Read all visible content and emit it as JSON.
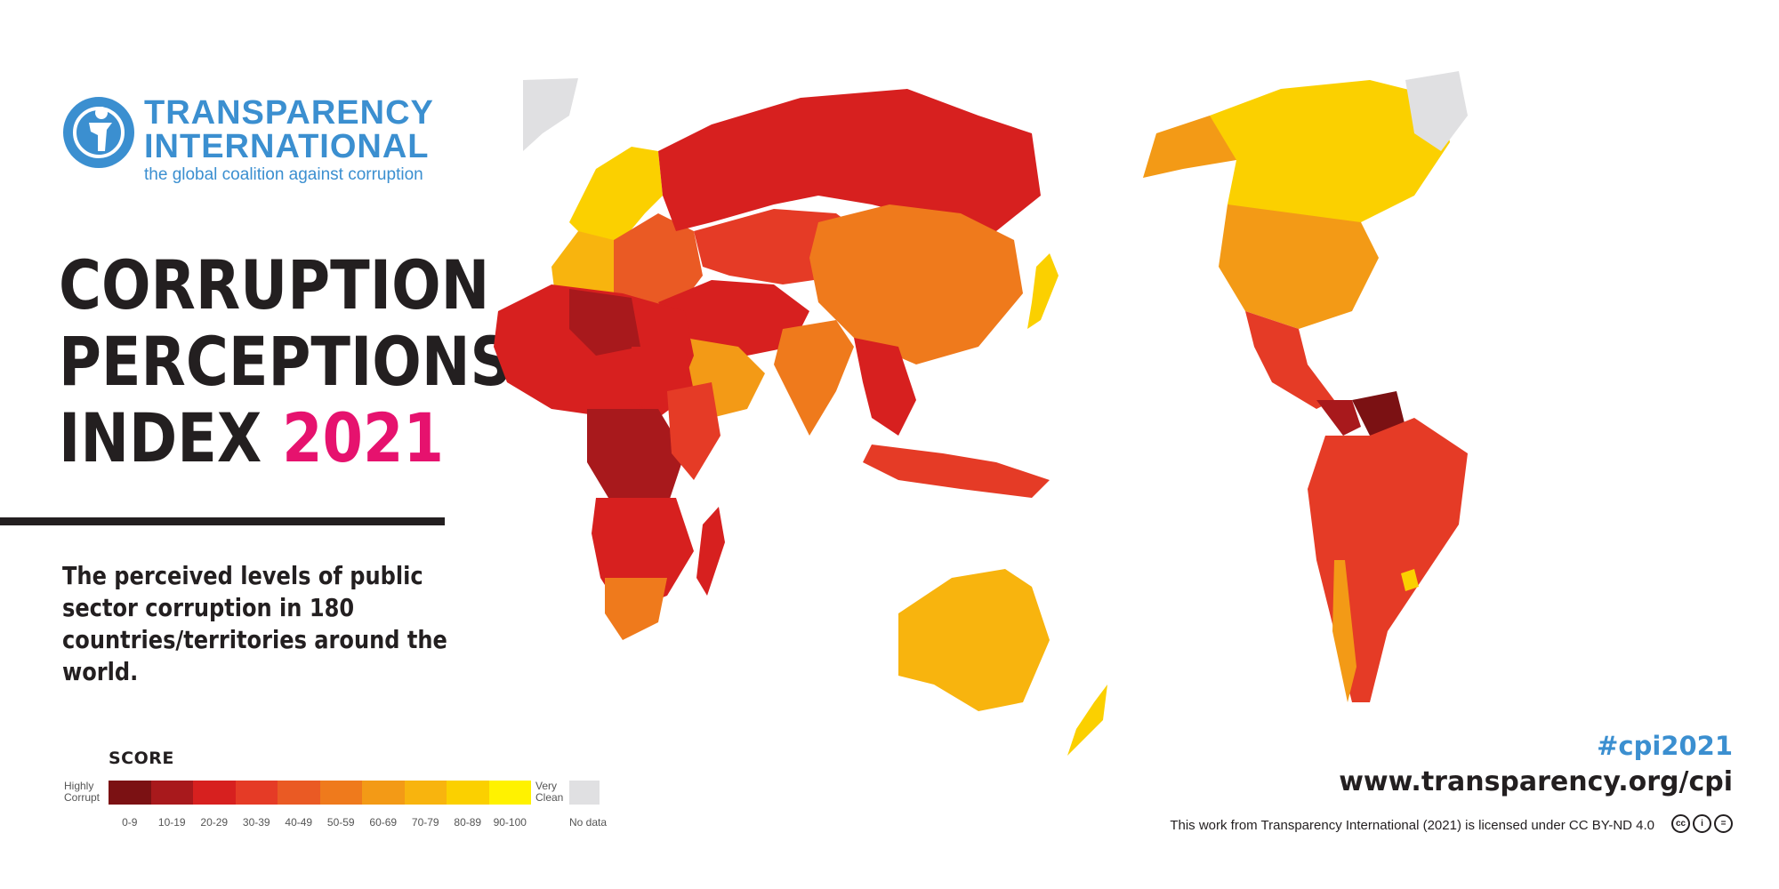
{
  "brand": {
    "name_line1": "TRANSPARENCY",
    "name_line2": "INTERNATIONAL",
    "tagline": "the global coalition against corruption"
  },
  "title": {
    "line1": "CORRUPTION",
    "line2": "PERCEPTIONS",
    "line3": "INDEX",
    "year": "2021"
  },
  "subtitle": "The perceived levels of public sector corruption in 180 countries/territories around the world.",
  "legend": {
    "title": "SCORE",
    "low_label": "Highly Corrupt",
    "high_label": "Very Clean",
    "nodata_label": "No data",
    "bins": [
      {
        "label": "0-9",
        "color": "#7b1113"
      },
      {
        "label": "10-19",
        "color": "#a8191c"
      },
      {
        "label": "20-29",
        "color": "#d7201f"
      },
      {
        "label": "30-39",
        "color": "#e53b26"
      },
      {
        "label": "40-49",
        "color": "#ea5a24"
      },
      {
        "label": "50-59",
        "color": "#ef7a1c"
      },
      {
        "label": "60-69",
        "color": "#f39a16"
      },
      {
        "label": "70-79",
        "color": "#f8b40e"
      },
      {
        "label": "80-89",
        "color": "#fbd000"
      },
      {
        "label": "90-100",
        "color": "#fff200"
      }
    ],
    "nodata_color": "#e0e0e2"
  },
  "footer": {
    "hashtag": "#cpi2021",
    "website": "www.transparency.org/cpi",
    "license": "This work from Transparency International (2021) is licensed under CC BY-ND 4.0"
  },
  "colors": {
    "brand_blue": "#3b8fd0",
    "accent_pink": "#e6126e",
    "text_dark": "#231f20"
  }
}
